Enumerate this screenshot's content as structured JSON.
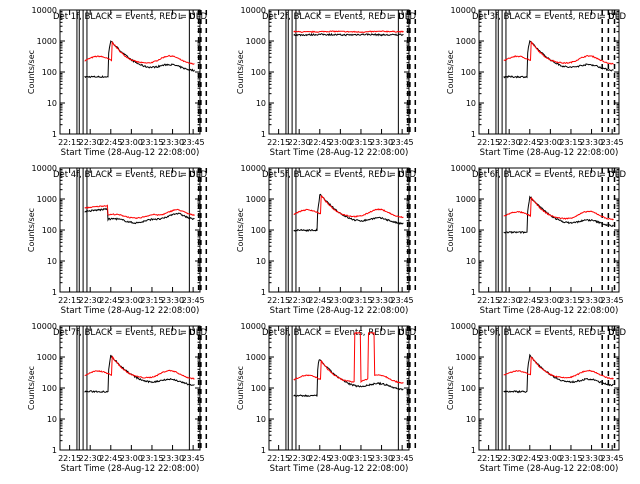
{
  "colors": {
    "background": "#ffffff",
    "axes": "#000000",
    "events": "#000000",
    "uld": "#ff0000"
  },
  "shared": {
    "xlabel": "Start Time (28-Aug-12 22:08:00)",
    "ylabel": "Counts/sec",
    "x_ticks": [
      "22:15",
      "22:30",
      "22:45",
      "23:00",
      "23:15",
      "23:30",
      "23:45"
    ],
    "y_ticks": [
      "1",
      "10",
      "100",
      "1000",
      "10000"
    ],
    "y_scale": "log",
    "ylim": [
      1,
      10000
    ],
    "xlim": [
      "22:08",
      "23:50"
    ],
    "marker_labels": [
      "L",
      "D"
    ]
  },
  "chart_data": [
    {
      "type": "line",
      "title": "Det 1f, BLACK = Events, RED = ULD",
      "events_profile": "flare",
      "uld_profile": "flare",
      "level": 1.0,
      "solid_markers_min": [
        22,
        25,
        30,
        35,
        168
      ],
      "dashed_markers_min": [
        180,
        183,
        190
      ]
    },
    {
      "type": "line",
      "title": "Det 2f, BLACK = Events, RED = ULD",
      "events_profile": "flat",
      "uld_profile": "flat",
      "level": 1.0,
      "solid_markers_min": [
        22,
        25,
        30,
        35,
        168
      ],
      "dashed_markers_min": [
        180,
        183,
        190
      ]
    },
    {
      "type": "line",
      "title": "Det 3f, BLACK = Events, RED = ULD",
      "events_profile": "flare",
      "uld_profile": "flare",
      "level": 1.0,
      "solid_markers_min": [
        22,
        25,
        30,
        35
      ],
      "dashed_markers_min": [
        160,
        168,
        176
      ]
    },
    {
      "type": "line",
      "title": "Det 4f, BLACK = Events, RED = ULD",
      "events_profile": "broad",
      "uld_profile": "broad",
      "level": 1.0,
      "solid_markers_min": [
        22,
        25,
        30,
        35,
        168
      ],
      "dashed_markers_min": [
        180,
        183,
        190
      ]
    },
    {
      "type": "line",
      "title": "Det 5f, BLACK = Events, RED = ULD",
      "events_profile": "flare",
      "uld_profile": "flare",
      "level": 1.4,
      "solid_markers_min": [
        22,
        25,
        30,
        35,
        168
      ],
      "dashed_markers_min": [
        180,
        183,
        190
      ]
    },
    {
      "type": "line",
      "title": "Det 6f, BLACK = Events, RED = ULD",
      "events_profile": "flare",
      "uld_profile": "flare",
      "level": 1.2,
      "solid_markers_min": [
        22,
        25,
        30,
        35
      ],
      "dashed_markers_min": [
        160,
        168,
        176
      ]
    },
    {
      "type": "line",
      "title": "Det 7f, BLACK = Events, RED = ULD",
      "events_profile": "flare",
      "uld_profile": "flare",
      "level": 1.1,
      "solid_markers_min": [
        22,
        25,
        30,
        35,
        168
      ],
      "dashed_markers_min": [
        180,
        183,
        190
      ]
    },
    {
      "type": "line",
      "title": "Det 8f, BLACK = Events, RED = ULD",
      "events_profile": "flare",
      "uld_profile": "spikes",
      "level": 0.8,
      "solid_markers_min": [
        22,
        25,
        30,
        35,
        168
      ],
      "dashed_markers_min": [
        180,
        183,
        190
      ]
    },
    {
      "type": "line",
      "title": "Det 9f, BLACK = Events, RED = ULD",
      "events_profile": "flare",
      "uld_profile": "flare",
      "level": 1.1,
      "solid_markers_min": [
        22,
        25,
        30,
        35
      ],
      "dashed_markers_min": [
        160,
        168,
        176
      ]
    }
  ]
}
